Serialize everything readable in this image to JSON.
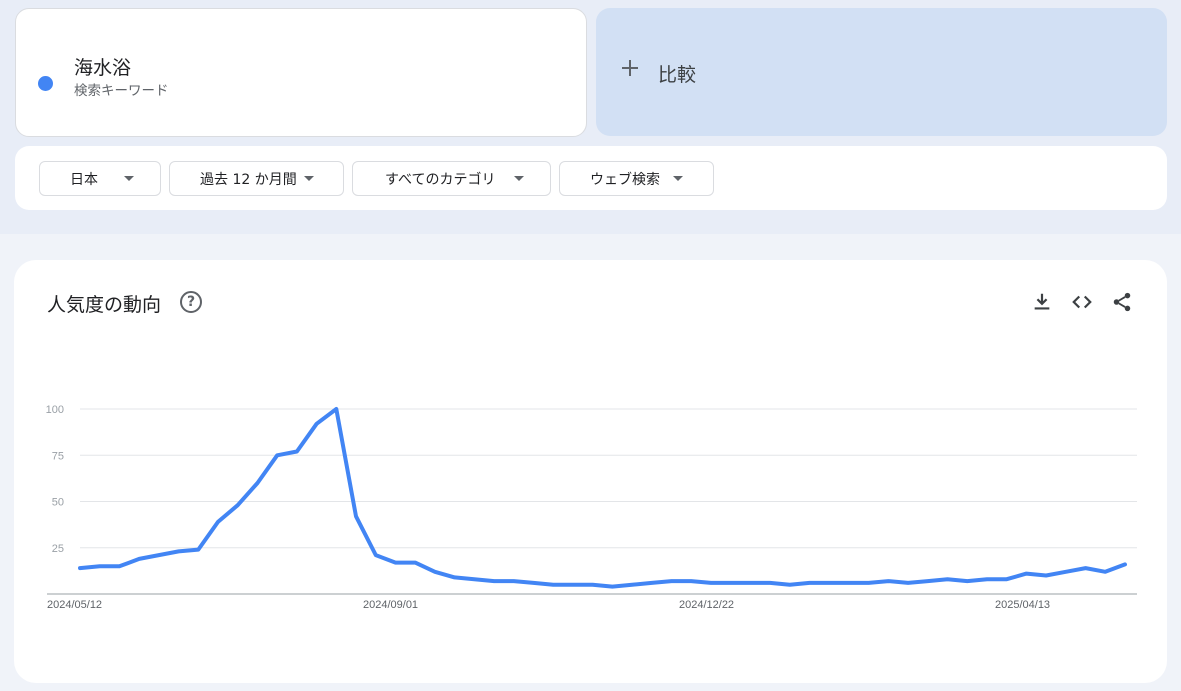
{
  "term": {
    "name": "海水浴",
    "type_label": "検索キーワード",
    "color": "#4285f4"
  },
  "compare": {
    "label": "比較"
  },
  "filters": [
    {
      "label": "日本"
    },
    {
      "label": "過去 12 か月間"
    },
    {
      "label": "すべてのカテゴリ"
    },
    {
      "label": "ウェブ検索"
    }
  ],
  "chart": {
    "title": "人気度の動向",
    "icons": [
      "help-icon",
      "download-icon",
      "embed-code-icon",
      "share-icon"
    ]
  },
  "chart_data": {
    "type": "line",
    "title": "",
    "xlabel": "",
    "ylabel": "",
    "ylim": [
      0,
      100
    ],
    "yticks": [
      25,
      50,
      75,
      100
    ],
    "grid": true,
    "x_tick_labels": [
      "2024/05/12",
      "2024/09/01",
      "2024/12/22",
      "2025/04/13"
    ],
    "series": [
      {
        "color": "#4285f4",
        "values": [
          14,
          15,
          15,
          19,
          21,
          23,
          24,
          39,
          48,
          60,
          75,
          77,
          92,
          100,
          42,
          21,
          17,
          17,
          12,
          9,
          8,
          7,
          7,
          6,
          5,
          5,
          5,
          4,
          5,
          6,
          7,
          7,
          6,
          6,
          6,
          6,
          5,
          6,
          6,
          6,
          6,
          7,
          6,
          7,
          8,
          7,
          8,
          8,
          11,
          10,
          12,
          14,
          12,
          16
        ]
      }
    ]
  }
}
